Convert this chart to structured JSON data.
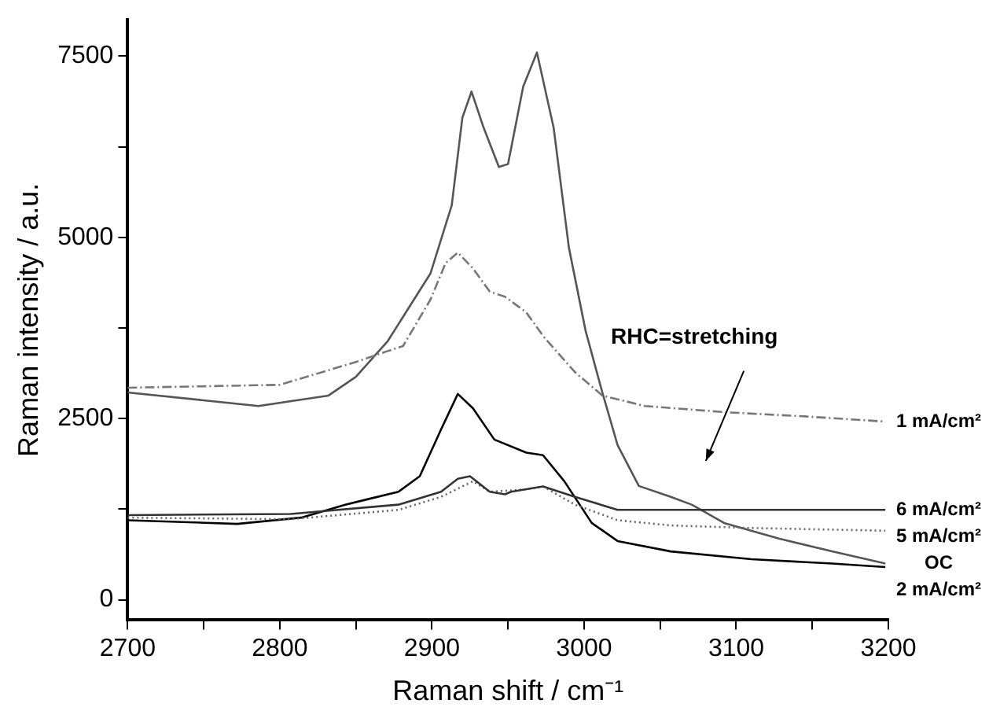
{
  "chart_data": {
    "type": "line",
    "xlabel": "Raman shift / cm⁻¹",
    "ylabel": "Raman intensity / a.u.",
    "xlim": [
      2700,
      3200
    ],
    "xticks": [
      2700,
      {
        "value": 2750,
        "label": null
      },
      2800,
      {
        "value": 2850,
        "label": null
      },
      2900,
      {
        "value": 2950,
        "label": null
      },
      3000,
      {
        "value": 3050,
        "label": null
      },
      3100,
      {
        "value": 3150,
        "label": null
      },
      3200
    ],
    "ylim": [
      -280,
      8000
    ],
    "yticks": [
      0,
      {
        "value": 1250,
        "label": null
      },
      2500,
      {
        "value": 3750,
        "label": null
      },
      5000,
      {
        "value": 6250,
        "label": null
      },
      7500
    ],
    "grid": false,
    "legend": false,
    "marker": "none",
    "series": [
      {
        "name": "1 mA/cm²",
        "color": "#777777",
        "line_style": "dashed",
        "x": [
          2700,
          2800,
          2850,
          2870,
          2881,
          2899,
          2909,
          2917,
          2927,
          2938,
          2948,
          2962,
          2973,
          2994,
          3012,
          3040,
          3093,
          3145,
          3198
        ],
        "values": [
          2925,
          2965,
          3280,
          3425,
          3500,
          4140,
          4645,
          4790,
          4570,
          4250,
          4180,
          3965,
          3640,
          3140,
          2817,
          2673,
          2587,
          2530,
          2458
        ]
      },
      {
        "name": "6 mA/cm²",
        "color": "#333333",
        "line_style": "solid",
        "x": [
          2700,
          2807,
          2878,
          2906,
          2917,
          2925,
          2938,
          2948,
          2952,
          2973,
          2994,
          3022,
          3057,
          3198
        ],
        "values": [
          1168,
          1183,
          1312,
          1490,
          1670,
          1705,
          1490,
          1455,
          1490,
          1563,
          1420,
          1240,
          1240,
          1240
        ]
      },
      {
        "name": "5 mA/cm²",
        "color": "#666666",
        "line_style": "dotted",
        "x": [
          2700,
          2807,
          2878,
          2906,
          2927,
          2938,
          2960,
          2973,
          2994,
          3022,
          3057,
          3110,
          3198
        ],
        "values": [
          1133,
          1111,
          1240,
          1420,
          1635,
          1490,
          1520,
          1563,
          1312,
          1097,
          1025,
          990,
          953
        ]
      },
      {
        "name": "OC",
        "color": "#555555",
        "line_style": "solid",
        "x": [
          2700,
          2786,
          2832,
          2850,
          2871,
          2899,
          2913,
          2920,
          2926,
          2934,
          2944,
          2950,
          2960,
          2969,
          2980,
          2990,
          3001,
          3012,
          3022,
          3036,
          3057,
          3071,
          3092,
          3128,
          3163,
          3198
        ],
        "values": [
          2860,
          2673,
          2817,
          3075,
          3570,
          4500,
          5440,
          6650,
          7010,
          6510,
          5970,
          6010,
          7080,
          7550,
          6510,
          4860,
          3710,
          2860,
          2135,
          1570,
          1420,
          1310,
          1060,
          845,
          667,
          500
        ]
      },
      {
        "name": "2 mA/cm²",
        "color": "#000000",
        "line_style": "solid",
        "x": [
          2700,
          2772,
          2814,
          2843,
          2857,
          2878,
          2892,
          2906,
          2917,
          2927,
          2941,
          2962,
          2973,
          2987,
          3005,
          3022,
          3057,
          3110,
          3163,
          3198
        ],
        "values": [
          1097,
          1047,
          1133,
          1312,
          1383,
          1490,
          1705,
          2350,
          2840,
          2640,
          2210,
          2030,
          1995,
          1635,
          1060,
          810,
          667,
          560,
          500,
          452
        ]
      }
    ],
    "annotations": [
      "RHC=stretching"
    ]
  }
}
